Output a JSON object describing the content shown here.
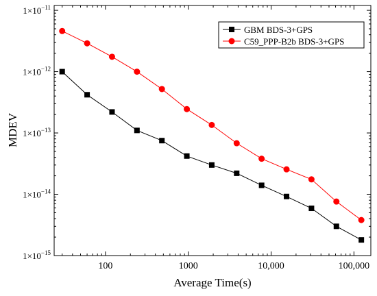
{
  "chart_data": {
    "type": "line",
    "xlabel": "Average Time(s)",
    "ylabel": "MDEV",
    "x_scale": "log",
    "y_scale": "log",
    "xlim": [
      24,
      160000
    ],
    "ylim": [
      1e-15,
      1.2e-11
    ],
    "x_ticks": [
      {
        "value": 100,
        "label": "100"
      },
      {
        "value": 1000,
        "label": "1000"
      },
      {
        "value": 10000,
        "label": "10,000"
      },
      {
        "value": 100000,
        "label": "100,000"
      }
    ],
    "y_ticks": [
      {
        "value": 1e-11,
        "base": "1×10",
        "exp": "−11"
      },
      {
        "value": 1e-12,
        "base": "1×10",
        "exp": "−12"
      },
      {
        "value": 1e-13,
        "base": "1×10",
        "exp": "−13"
      },
      {
        "value": 1e-14,
        "base": "1×10",
        "exp": "−14"
      },
      {
        "value": 1e-15,
        "base": "1×10",
        "exp": "−15"
      }
    ],
    "grid": false,
    "legend_position": "top-right",
    "series": [
      {
        "name": "GBM BDS-3+GPS",
        "color": "#000000",
        "marker": "square",
        "x": [
          30,
          60,
          120,
          240,
          480,
          960,
          1920,
          3840,
          7680,
          15360,
          30720,
          61440,
          122880
        ],
        "y": [
          1e-12,
          4.2e-13,
          2.2e-13,
          1.1e-13,
          7.5e-14,
          4.2e-14,
          3e-14,
          2.2e-14,
          1.4e-14,
          9.2e-15,
          5.9e-15,
          3e-15,
          1.8e-15
        ]
      },
      {
        "name": "C59_PPP-B2b BDS-3+GPS",
        "color": "#ff0000",
        "marker": "circle",
        "x": [
          30,
          60,
          120,
          240,
          480,
          960,
          1920,
          3840,
          7680,
          15360,
          30720,
          61440,
          122880
        ],
        "y": [
          4.6e-12,
          2.9e-12,
          1.75e-12,
          1e-12,
          5.2e-13,
          2.45e-13,
          1.35e-13,
          6.8e-14,
          3.8e-14,
          2.55e-14,
          1.75e-14,
          7.6e-15,
          3.8e-15
        ]
      }
    ]
  }
}
